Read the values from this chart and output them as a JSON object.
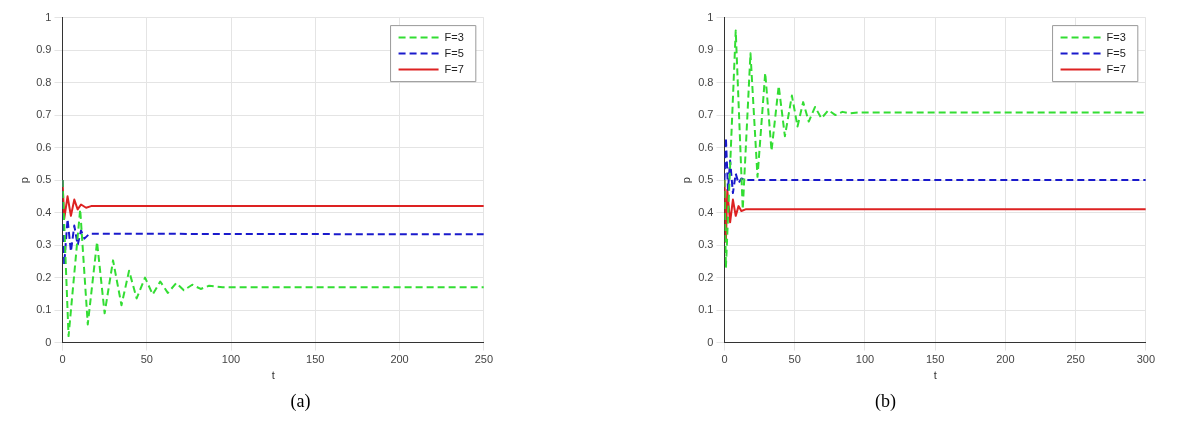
{
  "chart_data": [
    {
      "type": "line",
      "xlabel": "t",
      "ylabel": "p",
      "annotations": [
        "(a)"
      ],
      "xlim": [
        0,
        250
      ],
      "ylim": [
        0,
        1
      ],
      "xticks": [
        0,
        50,
        100,
        150,
        200,
        250
      ],
      "yticks": [
        0,
        0.1,
        0.2,
        0.3,
        0.4,
        0.5,
        0.6,
        0.7,
        0.8,
        0.9,
        1
      ],
      "grid": true,
      "legend": "top right",
      "marker": "none",
      "series": [
        {
          "name": "F=3",
          "color": "#33dd33",
          "line_style": "dashed",
          "x": [
            0,
            3.6,
            10.5,
            15,
            20.5,
            25,
            30,
            35,
            39.5,
            44,
            49,
            53.5,
            58,
            62.5,
            67.5,
            72,
            77,
            82,
            87,
            95,
            250
          ],
          "values": [
            0.5,
            0.02,
            0.41,
            0.056,
            0.31,
            0.09,
            0.253,
            0.115,
            0.221,
            0.136,
            0.2,
            0.148,
            0.188,
            0.153,
            0.183,
            0.161,
            0.178,
            0.165,
            0.175,
            0.17,
            0.17
          ]
        },
        {
          "name": "F=5",
          "color": "#1a1acc",
          "line_style": "dashed",
          "x": [
            0,
            1,
            3,
            5,
            7,
            9,
            11,
            13,
            16,
            250
          ],
          "values": [
            0.5,
            0.24,
            0.38,
            0.28,
            0.36,
            0.3,
            0.345,
            0.32,
            0.335,
            0.333
          ]
        },
        {
          "name": "F=7",
          "color": "#dd2222",
          "line_style": "solid",
          "x": [
            0,
            1,
            3,
            5,
            7,
            9,
            11,
            14,
            17,
            250
          ],
          "values": [
            0.5,
            0.38,
            0.45,
            0.39,
            0.44,
            0.41,
            0.425,
            0.415,
            0.42,
            0.42
          ]
        }
      ]
    },
    {
      "type": "line",
      "xlabel": "t",
      "ylabel": "p",
      "annotations": [
        "(b)"
      ],
      "xlim": [
        0,
        300
      ],
      "ylim": [
        0,
        1
      ],
      "xticks": [
        0,
        50,
        100,
        150,
        200,
        250,
        300
      ],
      "yticks": [
        0,
        0.1,
        0.2,
        0.3,
        0.4,
        0.5,
        0.6,
        0.7,
        0.8,
        0.9,
        1
      ],
      "grid": true,
      "legend": "top right",
      "marker": "none",
      "series": [
        {
          "name": "F=3",
          "color": "#33dd33",
          "line_style": "dashed",
          "x": [
            0,
            1,
            8,
            13,
            18.5,
            23.5,
            29,
            33.5,
            38.6,
            43,
            48,
            52,
            56,
            60,
            64.5,
            69,
            74,
            79,
            84,
            89,
            95,
            300
          ],
          "values": [
            0.5,
            0.23,
            0.96,
            0.41,
            0.89,
            0.51,
            0.83,
            0.59,
            0.79,
            0.635,
            0.76,
            0.665,
            0.74,
            0.68,
            0.725,
            0.69,
            0.715,
            0.7,
            0.71,
            0.705,
            0.708,
            0.708
          ]
        },
        {
          "name": "F=5",
          "color": "#1a1acc",
          "line_style": "dashed",
          "x": [
            0,
            1,
            2.5,
            4,
            6,
            8,
            10,
            12,
            15,
            300
          ],
          "values": [
            0.5,
            0.63,
            0.47,
            0.56,
            0.46,
            0.52,
            0.49,
            0.505,
            0.5,
            0.5
          ]
        },
        {
          "name": "F=7",
          "color": "#dd2222",
          "line_style": "solid",
          "x": [
            0,
            1,
            2,
            4,
            6,
            8,
            10,
            12,
            15,
            300
          ],
          "values": [
            0.5,
            0.31,
            0.47,
            0.37,
            0.44,
            0.39,
            0.42,
            0.405,
            0.41,
            0.41
          ]
        }
      ]
    }
  ]
}
